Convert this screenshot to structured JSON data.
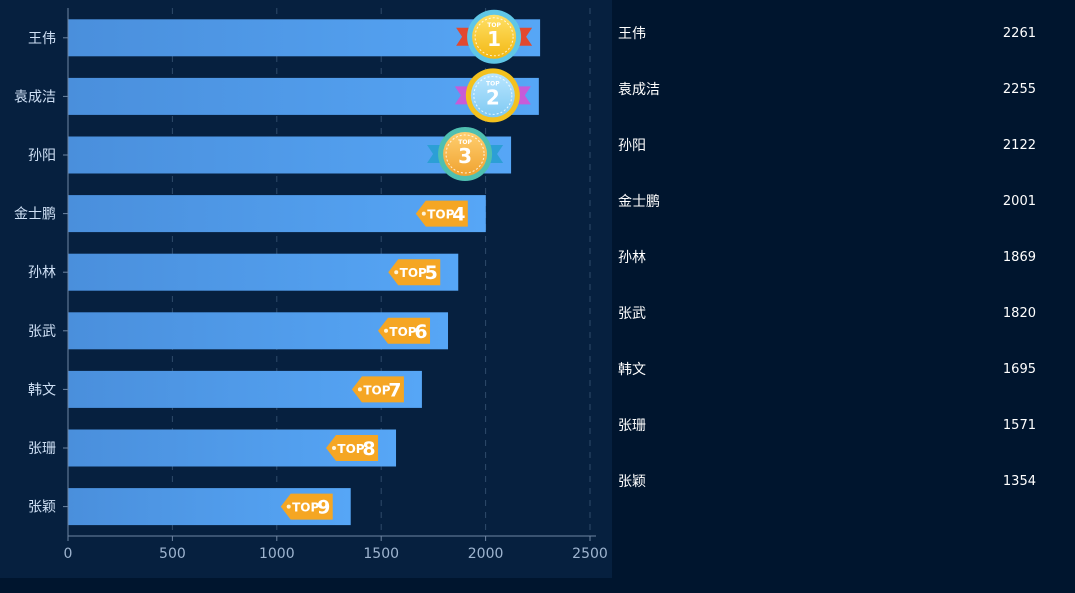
{
  "colors": {
    "background": "#00152e",
    "panel": "#06203f",
    "bar_start": "#4a8fdc",
    "bar_end": "#56a6f6",
    "grid": "#2f4a6a",
    "axis_text": "#9eb4cf",
    "label_text": "#cfe0f5",
    "badge_orange": "#f5a623",
    "gold": "#f7c51e",
    "teal_ring": "#63c9e8"
  },
  "badge_prefix": "TOP",
  "chart_data": {
    "type": "bar",
    "orientation": "horizontal",
    "categories": [
      "王伟",
      "袁成洁",
      "孙阳",
      "金士鹏",
      "孙林",
      "张武",
      "韩文",
      "张珊",
      "张颖"
    ],
    "values": [
      2261,
      2255,
      2122,
      2001,
      1869,
      1820,
      1695,
      1571,
      1354
    ],
    "ranks": [
      "1",
      "2",
      "3",
      "4",
      "5",
      "6",
      "7",
      "8",
      "9"
    ],
    "xlim": [
      0,
      2500
    ],
    "xticks": [
      "0",
      "500",
      "1000",
      "1500",
      "2000",
      "2500"
    ],
    "grid": true,
    "legend": "none"
  },
  "list": {
    "items": [
      {
        "name": "王伟",
        "value": "2261"
      },
      {
        "name": "袁成洁",
        "value": "2255"
      },
      {
        "name": "孙阳",
        "value": "2122"
      },
      {
        "name": "金士鹏",
        "value": "2001"
      },
      {
        "name": "孙林",
        "value": "1869"
      },
      {
        "name": "张武",
        "value": "1820"
      },
      {
        "name": "韩文",
        "value": "1695"
      },
      {
        "name": "张珊",
        "value": "1571"
      },
      {
        "name": "张颖",
        "value": "1354"
      }
    ]
  }
}
